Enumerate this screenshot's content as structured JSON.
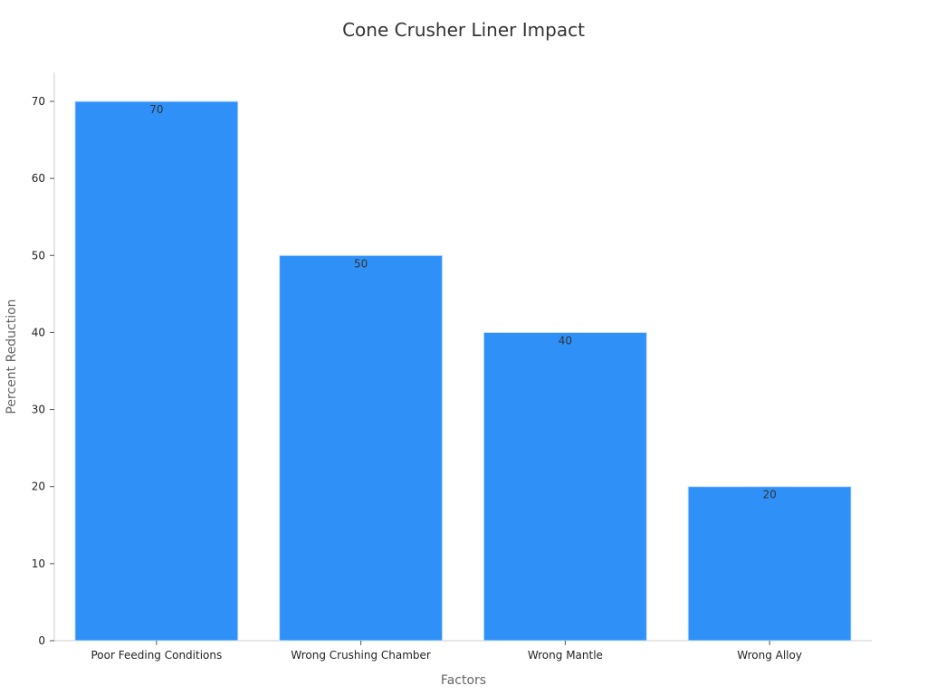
{
  "chart_data": {
    "type": "bar",
    "title": "Cone Crusher Liner Impact",
    "xlabel": "Factors",
    "ylabel": "Percent Reduction",
    "categories": [
      "Poor Feeding Conditions",
      "Wrong Crushing Chamber",
      "Wrong Mantle",
      "Wrong Alloy"
    ],
    "values": [
      70,
      50,
      40,
      20
    ],
    "ylim": [
      0,
      70
    ],
    "yticks": [
      0,
      10,
      20,
      30,
      40,
      50,
      60,
      70
    ],
    "bar_color": "#2f91f8",
    "grid": false,
    "data_labels": true
  }
}
